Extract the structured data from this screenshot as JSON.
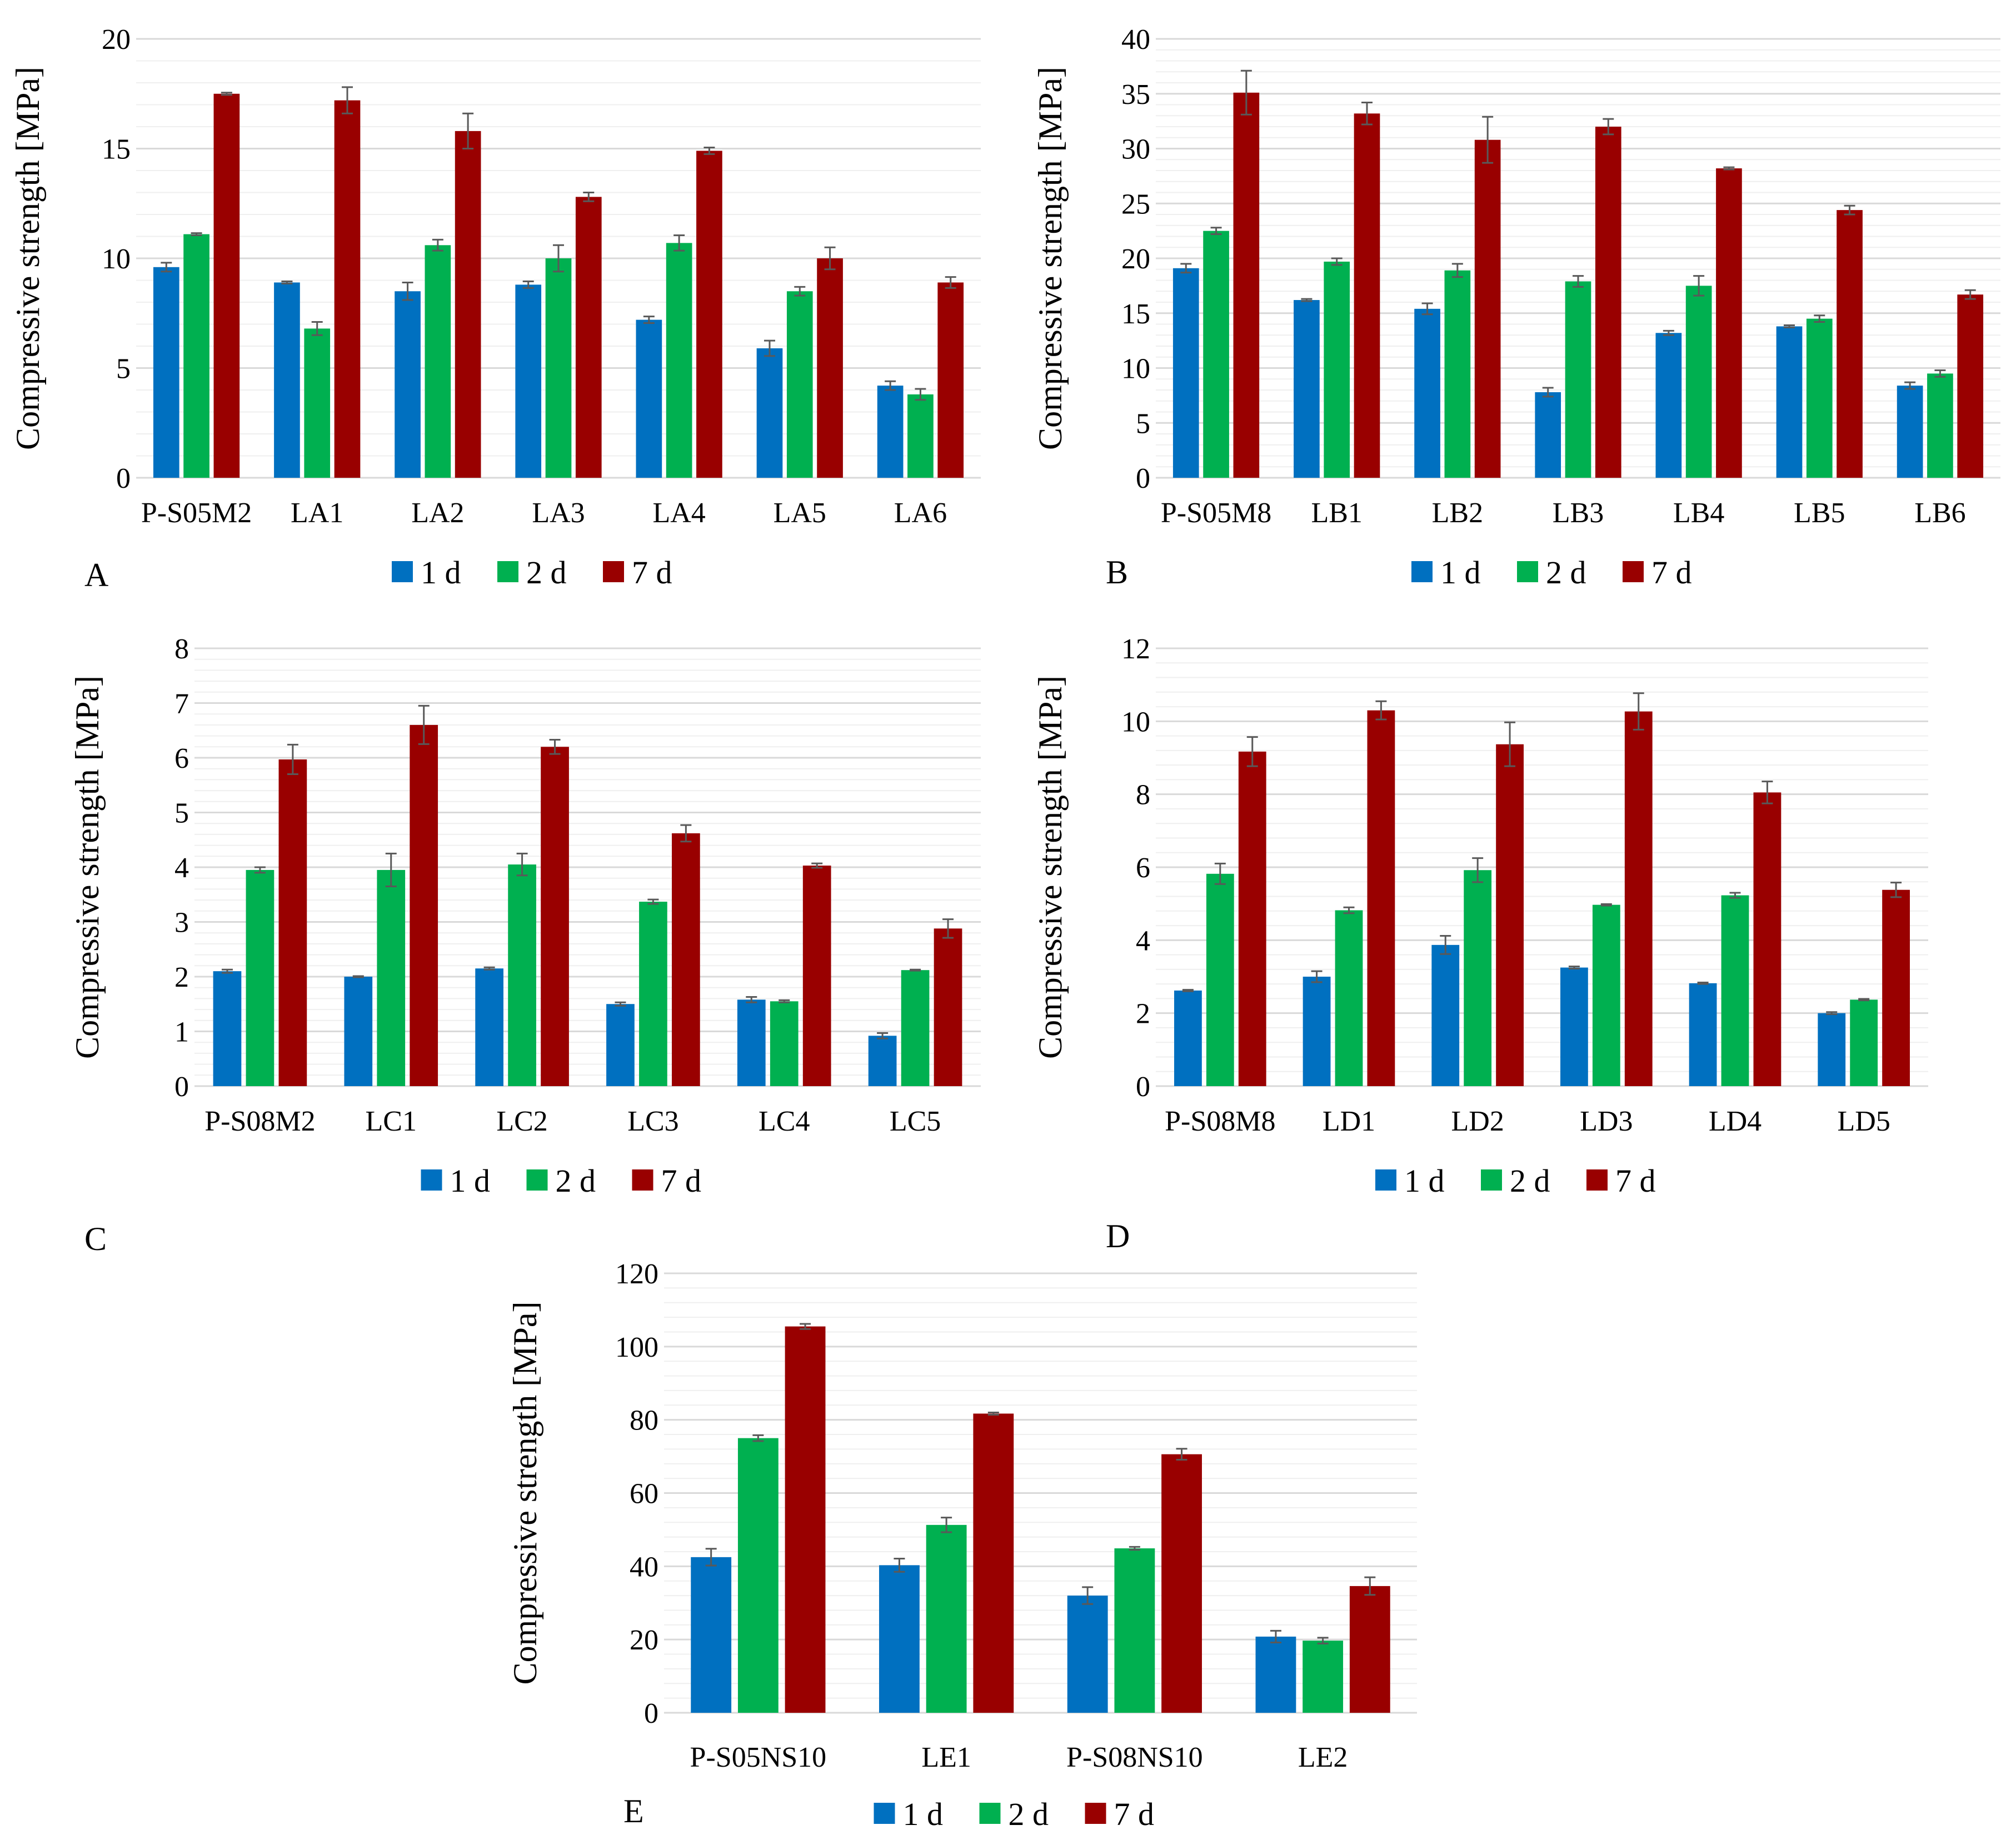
{
  "colors": {
    "d1": "#0070c0",
    "d2": "#00b050",
    "d7": "#990000"
  },
  "ylabel": "Compressive strength [MPa]",
  "legend": [
    "1 d",
    "2 d",
    "7 d"
  ],
  "chart_data": [
    {
      "type": "bar",
      "panel": "A",
      "ylabel": "Compressive strength [MPa]",
      "ylim": [
        0,
        20
      ],
      "yticks": [
        0,
        5,
        10,
        15,
        20
      ],
      "grid": true,
      "legend_position": "bottom",
      "categories": [
        "P-S05M2",
        "LA1",
        "LA2",
        "LA3",
        "LA4",
        "LA5",
        "LA6"
      ],
      "series": [
        {
          "name": "1 d",
          "values": [
            9.6,
            8.9,
            8.5,
            8.8,
            7.2,
            5.9,
            4.2
          ],
          "errors": [
            0.2,
            0.05,
            0.4,
            0.15,
            0.15,
            0.35,
            0.2
          ]
        },
        {
          "name": "2 d",
          "values": [
            11.1,
            6.8,
            10.6,
            10.0,
            10.7,
            8.5,
            3.8
          ],
          "errors": [
            0.05,
            0.3,
            0.25,
            0.6,
            0.35,
            0.2,
            0.25
          ]
        },
        {
          "name": "7 d",
          "values": [
            17.5,
            17.2,
            15.8,
            12.8,
            14.9,
            10.0,
            8.9
          ],
          "errors": [
            0.05,
            0.6,
            0.8,
            0.2,
            0.15,
            0.5,
            0.25
          ]
        }
      ]
    },
    {
      "type": "bar",
      "panel": "B",
      "ylabel": "Compressive strength [MPa]",
      "ylim": [
        0,
        40
      ],
      "yticks": [
        0,
        5,
        10,
        15,
        20,
        25,
        30,
        35,
        40
      ],
      "grid": true,
      "legend_position": "bottom",
      "categories": [
        "P-S05M8",
        "LB1",
        "LB2",
        "LB3",
        "LB4",
        "LB5",
        "LB6"
      ],
      "series": [
        {
          "name": "1 d",
          "values": [
            19.1,
            16.2,
            15.4,
            7.8,
            13.2,
            13.8,
            8.4
          ],
          "errors": [
            0.4,
            0.1,
            0.5,
            0.4,
            0.2,
            0.1,
            0.3
          ]
        },
        {
          "name": "2 d",
          "values": [
            22.5,
            19.7,
            18.9,
            17.9,
            17.5,
            14.5,
            9.5
          ],
          "errors": [
            0.3,
            0.3,
            0.6,
            0.5,
            0.9,
            0.3,
            0.3
          ]
        },
        {
          "name": "7 d",
          "values": [
            35.1,
            33.2,
            30.8,
            32.0,
            28.2,
            24.4,
            16.7
          ],
          "errors": [
            2.0,
            1.0,
            2.1,
            0.7,
            0.1,
            0.4,
            0.4
          ]
        }
      ]
    },
    {
      "type": "bar",
      "panel": "C",
      "ylabel": "Compressive strength [MPa]",
      "ylim": [
        0,
        8
      ],
      "yticks": [
        0,
        1,
        2,
        3,
        4,
        5,
        6,
        7,
        8
      ],
      "grid": true,
      "legend_position": "bottom",
      "categories": [
        "P-S08M2",
        "LC1",
        "LC2",
        "LC3",
        "LC4",
        "LC5"
      ],
      "series": [
        {
          "name": "1 d",
          "values": [
            2.1,
            2.0,
            2.15,
            1.5,
            1.58,
            0.92
          ],
          "errors": [
            0.03,
            0.01,
            0.02,
            0.03,
            0.05,
            0.05
          ]
        },
        {
          "name": "2 d",
          "values": [
            3.95,
            3.95,
            4.05,
            3.37,
            1.55,
            2.12
          ],
          "errors": [
            0.05,
            0.3,
            0.2,
            0.04,
            0.02,
            0.01
          ]
        },
        {
          "name": "7 d",
          "values": [
            5.97,
            6.6,
            6.2,
            4.62,
            4.03,
            2.88
          ],
          "errors": [
            0.27,
            0.35,
            0.13,
            0.15,
            0.04,
            0.17
          ]
        }
      ]
    },
    {
      "type": "bar",
      "panel": "D",
      "ylabel": "Compressive strength [MPa]",
      "ylim": [
        0,
        12
      ],
      "yticks": [
        0,
        2,
        4,
        6,
        8,
        10,
        12
      ],
      "grid": true,
      "legend_position": "bottom",
      "categories": [
        "P-S08M8",
        "LD1",
        "LD2",
        "LD3",
        "LD4",
        "LD5"
      ],
      "series": [
        {
          "name": "1 d",
          "values": [
            2.62,
            3.0,
            3.87,
            3.25,
            2.82,
            2.0
          ],
          "errors": [
            0.02,
            0.15,
            0.25,
            0.03,
            0.02,
            0.03
          ]
        },
        {
          "name": "2 d",
          "values": [
            5.82,
            4.82,
            5.92,
            4.97,
            5.23,
            2.37
          ],
          "errors": [
            0.28,
            0.08,
            0.33,
            0.02,
            0.07,
            0.02
          ]
        },
        {
          "name": "7 d",
          "values": [
            9.17,
            10.3,
            9.37,
            10.27,
            8.05,
            5.38
          ],
          "errors": [
            0.4,
            0.25,
            0.6,
            0.5,
            0.3,
            0.2
          ]
        }
      ]
    },
    {
      "type": "bar",
      "panel": "E",
      "ylabel": "Compressive strength [MPa]",
      "ylim": [
        0,
        120
      ],
      "yticks": [
        0,
        20,
        40,
        60,
        80,
        100,
        120
      ],
      "grid": true,
      "legend_position": "bottom",
      "categories": [
        "P-S05NS10",
        "LE1",
        "P-S08NS10",
        "LE2"
      ],
      "series": [
        {
          "name": "1 d",
          "values": [
            42.5,
            40.3,
            32.0,
            20.8
          ],
          "errors": [
            2.3,
            1.8,
            2.3,
            1.6
          ]
        },
        {
          "name": "2 d",
          "values": [
            75.0,
            51.3,
            44.9,
            19.7
          ],
          "errors": [
            0.8,
            2.0,
            0.4,
            0.8
          ]
        },
        {
          "name": "7 d",
          "values": [
            105.5,
            81.7,
            70.6,
            34.6
          ],
          "errors": [
            0.7,
            0.3,
            1.5,
            2.4
          ]
        }
      ]
    }
  ]
}
